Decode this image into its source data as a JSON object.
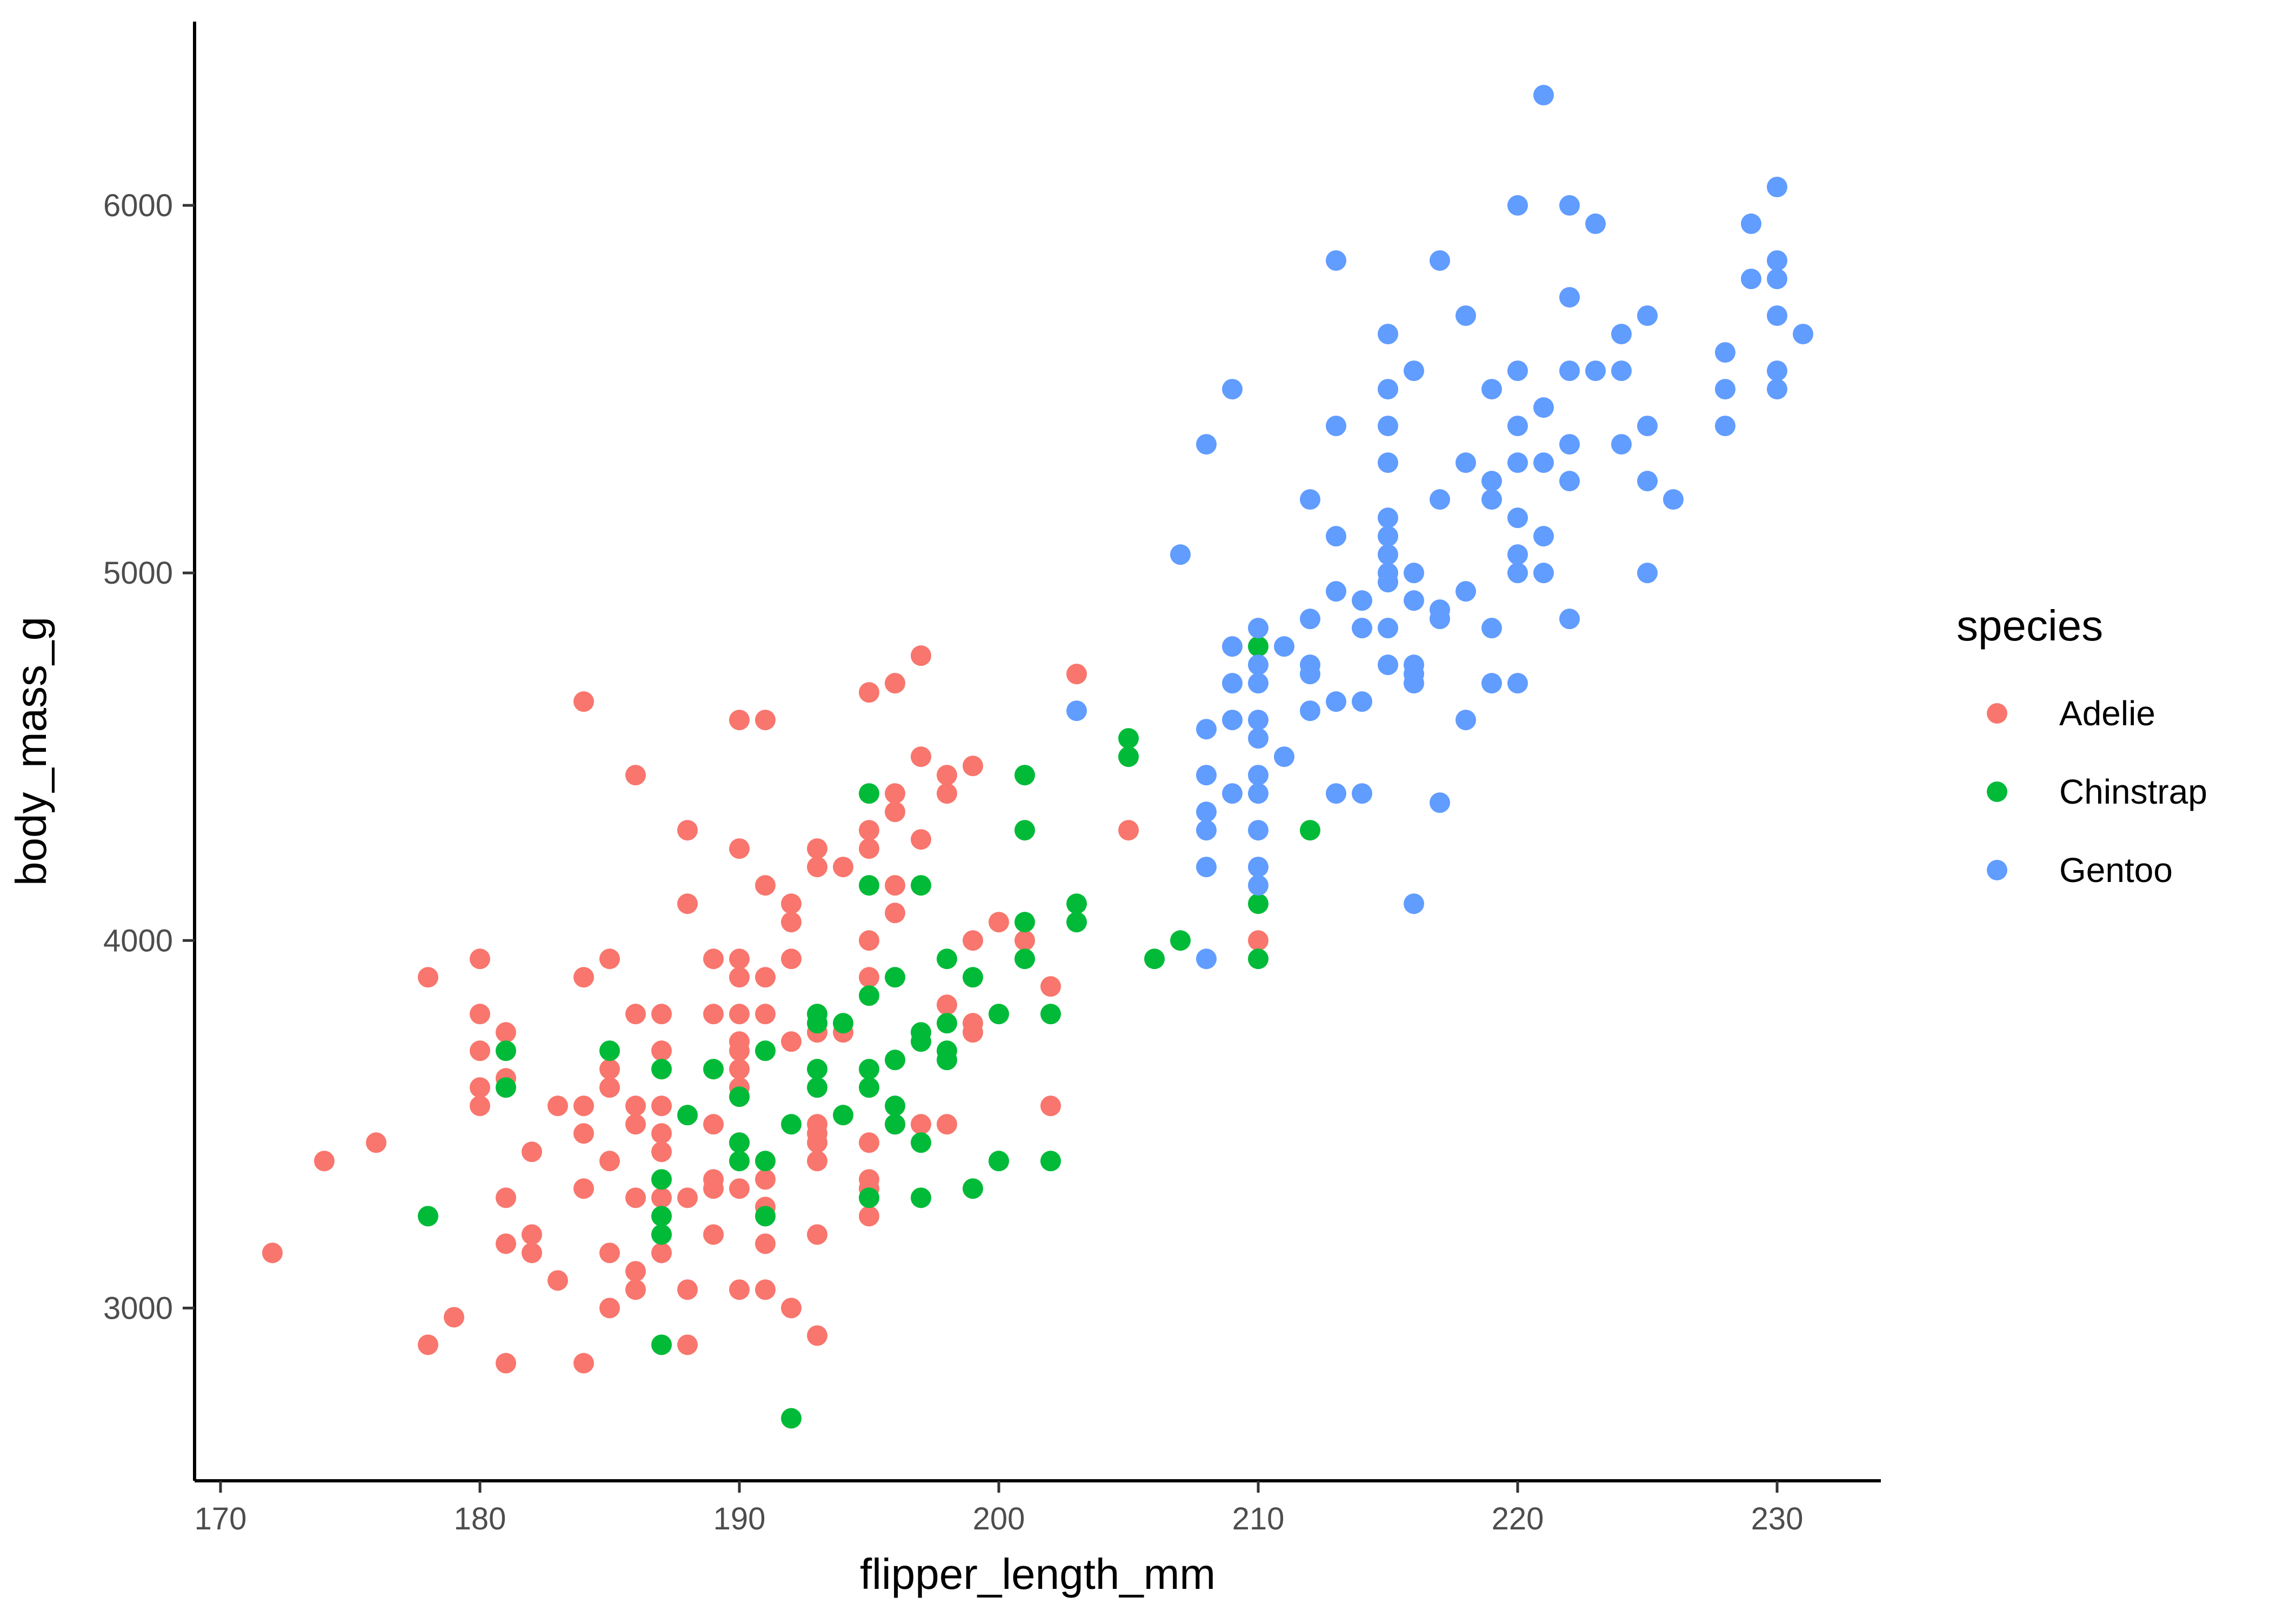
{
  "chart_data": {
    "type": "scatter",
    "xlabel": "flipper_length_mm",
    "ylabel": "body_mass_g",
    "xlim": [
      169,
      234
    ],
    "ylim": [
      2530,
      6500
    ],
    "x_ticks": [
      170,
      180,
      190,
      200,
      210,
      220,
      230
    ],
    "y_ticks": [
      3000,
      4000,
      5000,
      6000
    ],
    "grid": false,
    "legend": {
      "title": "species",
      "position": "right"
    },
    "series": [
      {
        "name": "Adelie",
        "color": "#F8766D",
        "points": [
          [
            172,
            3150
          ],
          [
            174,
            3400
          ],
          [
            176,
            3450
          ],
          [
            178,
            3900
          ],
          [
            178,
            2900
          ],
          [
            179,
            2975
          ],
          [
            180,
            3950
          ],
          [
            180,
            3800
          ],
          [
            180,
            3700
          ],
          [
            180,
            3600
          ],
          [
            180,
            3550
          ],
          [
            181,
            3750
          ],
          [
            181,
            3625
          ],
          [
            181,
            3300
          ],
          [
            181,
            3175
          ],
          [
            181,
            2850
          ],
          [
            182,
            3425
          ],
          [
            182,
            3200
          ],
          [
            182,
            3150
          ],
          [
            183,
            3550
          ],
          [
            183,
            3075
          ],
          [
            184,
            4650
          ],
          [
            184,
            3900
          ],
          [
            184,
            3550
          ],
          [
            184,
            3475
          ],
          [
            184,
            3325
          ],
          [
            184,
            2850
          ],
          [
            185,
            3950
          ],
          [
            185,
            3650
          ],
          [
            185,
            3600
          ],
          [
            185,
            3400
          ],
          [
            185,
            3150
          ],
          [
            185,
            3000
          ],
          [
            186,
            4450
          ],
          [
            186,
            3800
          ],
          [
            186,
            3550
          ],
          [
            186,
            3500
          ],
          [
            186,
            3300
          ],
          [
            186,
            3100
          ],
          [
            186,
            3050
          ],
          [
            187,
            3800
          ],
          [
            187,
            3700
          ],
          [
            187,
            3550
          ],
          [
            187,
            3475
          ],
          [
            187,
            3425
          ],
          [
            187,
            3300
          ],
          [
            187,
            3150
          ],
          [
            188,
            4300
          ],
          [
            188,
            4100
          ],
          [
            188,
            3300
          ],
          [
            188,
            3050
          ],
          [
            188,
            2900
          ],
          [
            189,
            3950
          ],
          [
            189,
            3800
          ],
          [
            189,
            3500
          ],
          [
            189,
            3350
          ],
          [
            189,
            3325
          ],
          [
            189,
            3200
          ],
          [
            190,
            4600
          ],
          [
            190,
            4250
          ],
          [
            190,
            3950
          ],
          [
            190,
            3900
          ],
          [
            190,
            3800
          ],
          [
            190,
            3725
          ],
          [
            190,
            3700
          ],
          [
            190,
            3650
          ],
          [
            190,
            3600
          ],
          [
            190,
            3450
          ],
          [
            190,
            3325
          ],
          [
            190,
            3050
          ],
          [
            191,
            4600
          ],
          [
            191,
            4150
          ],
          [
            191,
            3900
          ],
          [
            191,
            3800
          ],
          [
            191,
            3350
          ],
          [
            191,
            3275
          ],
          [
            191,
            3175
          ],
          [
            191,
            3050
          ],
          [
            192,
            4100
          ],
          [
            192,
            4050
          ],
          [
            192,
            3950
          ],
          [
            192,
            3725
          ],
          [
            192,
            3000
          ],
          [
            193,
            4250
          ],
          [
            193,
            4200
          ],
          [
            193,
            3750
          ],
          [
            193,
            3500
          ],
          [
            193,
            3475
          ],
          [
            193,
            3450
          ],
          [
            193,
            3400
          ],
          [
            193,
            3200
          ],
          [
            193,
            2925
          ],
          [
            194,
            4200
          ],
          [
            194,
            3750
          ],
          [
            195,
            4675
          ],
          [
            195,
            4300
          ],
          [
            195,
            4250
          ],
          [
            195,
            4000
          ],
          [
            195,
            3900
          ],
          [
            195,
            3450
          ],
          [
            195,
            3350
          ],
          [
            195,
            3325
          ],
          [
            195,
            3250
          ],
          [
            196,
            4700
          ],
          [
            196,
            4400
          ],
          [
            196,
            4350
          ],
          [
            196,
            4150
          ],
          [
            196,
            4075
          ],
          [
            196,
            3500
          ],
          [
            197,
            4775
          ],
          [
            197,
            4500
          ],
          [
            197,
            4275
          ],
          [
            197,
            3500
          ],
          [
            198,
            4450
          ],
          [
            198,
            4400
          ],
          [
            198,
            3825
          ],
          [
            198,
            3500
          ],
          [
            199,
            4475
          ],
          [
            199,
            4000
          ],
          [
            199,
            3775
          ],
          [
            199,
            3750
          ],
          [
            200,
            4050
          ],
          [
            201,
            4000
          ],
          [
            202,
            3875
          ],
          [
            202,
            3550
          ],
          [
            203,
            4725
          ],
          [
            205,
            4300
          ],
          [
            210,
            4000
          ]
        ]
      },
      {
        "name": "Chinstrap",
        "color": "#00BA38",
        "points": [
          [
            178,
            3250
          ],
          [
            181,
            3700
          ],
          [
            181,
            3600
          ],
          [
            185,
            3700
          ],
          [
            187,
            3650
          ],
          [
            187,
            3350
          ],
          [
            187,
            3250
          ],
          [
            187,
            3200
          ],
          [
            187,
            2900
          ],
          [
            188,
            3525
          ],
          [
            189,
            3650
          ],
          [
            190,
            3575
          ],
          [
            190,
            3450
          ],
          [
            190,
            3400
          ],
          [
            191,
            3700
          ],
          [
            191,
            3400
          ],
          [
            191,
            3250
          ],
          [
            192,
            3500
          ],
          [
            192,
            2700
          ],
          [
            193,
            3800
          ],
          [
            193,
            3775
          ],
          [
            193,
            3650
          ],
          [
            193,
            3600
          ],
          [
            194,
            3775
          ],
          [
            194,
            3525
          ],
          [
            195,
            4400
          ],
          [
            195,
            4150
          ],
          [
            195,
            3850
          ],
          [
            195,
            3650
          ],
          [
            195,
            3600
          ],
          [
            195,
            3300
          ],
          [
            196,
            3900
          ],
          [
            196,
            3675
          ],
          [
            196,
            3550
          ],
          [
            196,
            3500
          ],
          [
            197,
            4150
          ],
          [
            197,
            3750
          ],
          [
            197,
            3725
          ],
          [
            197,
            3450
          ],
          [
            197,
            3300
          ],
          [
            198,
            3950
          ],
          [
            198,
            3775
          ],
          [
            198,
            3700
          ],
          [
            198,
            3675
          ],
          [
            199,
            3900
          ],
          [
            199,
            3325
          ],
          [
            200,
            3800
          ],
          [
            200,
            3400
          ],
          [
            201,
            4450
          ],
          [
            201,
            4300
          ],
          [
            201,
            4050
          ],
          [
            201,
            3950
          ],
          [
            202,
            3800
          ],
          [
            202,
            3400
          ],
          [
            203,
            4100
          ],
          [
            203,
            4050
          ],
          [
            205,
            4550
          ],
          [
            205,
            4500
          ],
          [
            206,
            3950
          ],
          [
            207,
            4000
          ],
          [
            210,
            4800
          ],
          [
            210,
            4100
          ],
          [
            210,
            3950
          ],
          [
            212,
            4300
          ]
        ]
      },
      {
        "name": "Gentoo",
        "color": "#619CFF",
        "points": [
          [
            203,
            4625
          ],
          [
            207,
            5050
          ],
          [
            208,
            5350
          ],
          [
            208,
            4575
          ],
          [
            208,
            4450
          ],
          [
            208,
            4350
          ],
          [
            208,
            4300
          ],
          [
            208,
            4200
          ],
          [
            208,
            3950
          ],
          [
            209,
            5500
          ],
          [
            209,
            4800
          ],
          [
            209,
            4700
          ],
          [
            209,
            4600
          ],
          [
            209,
            4400
          ],
          [
            210,
            4850
          ],
          [
            210,
            4750
          ],
          [
            210,
            4700
          ],
          [
            210,
            4600
          ],
          [
            210,
            4550
          ],
          [
            210,
            4450
          ],
          [
            210,
            4400
          ],
          [
            210,
            4300
          ],
          [
            210,
            4200
          ],
          [
            210,
            4150
          ],
          [
            211,
            4800
          ],
          [
            211,
            4500
          ],
          [
            212,
            5200
          ],
          [
            212,
            4875
          ],
          [
            212,
            4750
          ],
          [
            212,
            4725
          ],
          [
            212,
            4625
          ],
          [
            213,
            5850
          ],
          [
            213,
            5400
          ],
          [
            213,
            5100
          ],
          [
            213,
            4950
          ],
          [
            213,
            4650
          ],
          [
            213,
            4400
          ],
          [
            214,
            4925
          ],
          [
            214,
            4850
          ],
          [
            214,
            4650
          ],
          [
            214,
            4400
          ],
          [
            215,
            5650
          ],
          [
            215,
            5500
          ],
          [
            215,
            5400
          ],
          [
            215,
            5300
          ],
          [
            215,
            5150
          ],
          [
            215,
            5100
          ],
          [
            215,
            5050
          ],
          [
            215,
            5000
          ],
          [
            215,
            4975
          ],
          [
            215,
            4850
          ],
          [
            215,
            4750
          ],
          [
            216,
            5550
          ],
          [
            216,
            5000
          ],
          [
            216,
            4925
          ],
          [
            216,
            4750
          ],
          [
            216,
            4725
          ],
          [
            216,
            4700
          ],
          [
            216,
            4100
          ],
          [
            217,
            5850
          ],
          [
            217,
            5200
          ],
          [
            217,
            4900
          ],
          [
            217,
            4875
          ],
          [
            217,
            4375
          ],
          [
            218,
            5700
          ],
          [
            218,
            5300
          ],
          [
            218,
            4950
          ],
          [
            218,
            4600
          ],
          [
            219,
            5500
          ],
          [
            219,
            5250
          ],
          [
            219,
            5200
          ],
          [
            219,
            4850
          ],
          [
            219,
            4700
          ],
          [
            220,
            6000
          ],
          [
            220,
            5550
          ],
          [
            220,
            5400
          ],
          [
            220,
            5300
          ],
          [
            220,
            5150
          ],
          [
            220,
            5050
          ],
          [
            220,
            5000
          ],
          [
            220,
            4700
          ],
          [
            221,
            6300
          ],
          [
            221,
            5450
          ],
          [
            221,
            5300
          ],
          [
            221,
            5100
          ],
          [
            221,
            5000
          ],
          [
            222,
            6000
          ],
          [
            222,
            5750
          ],
          [
            222,
            5550
          ],
          [
            222,
            5350
          ],
          [
            222,
            5250
          ],
          [
            222,
            4875
          ],
          [
            223,
            5950
          ],
          [
            223,
            5550
          ],
          [
            224,
            5650
          ],
          [
            224,
            5550
          ],
          [
            224,
            5350
          ],
          [
            225,
            5700
          ],
          [
            225,
            5400
          ],
          [
            225,
            5250
          ],
          [
            225,
            5000
          ],
          [
            226,
            5200
          ],
          [
            228,
            5600
          ],
          [
            228,
            5500
          ],
          [
            228,
            5400
          ],
          [
            229,
            5950
          ],
          [
            229,
            5800
          ],
          [
            230,
            6050
          ],
          [
            230,
            5850
          ],
          [
            230,
            5800
          ],
          [
            230,
            5700
          ],
          [
            230,
            5550
          ],
          [
            230,
            5500
          ],
          [
            231,
            5650
          ]
        ]
      }
    ]
  }
}
